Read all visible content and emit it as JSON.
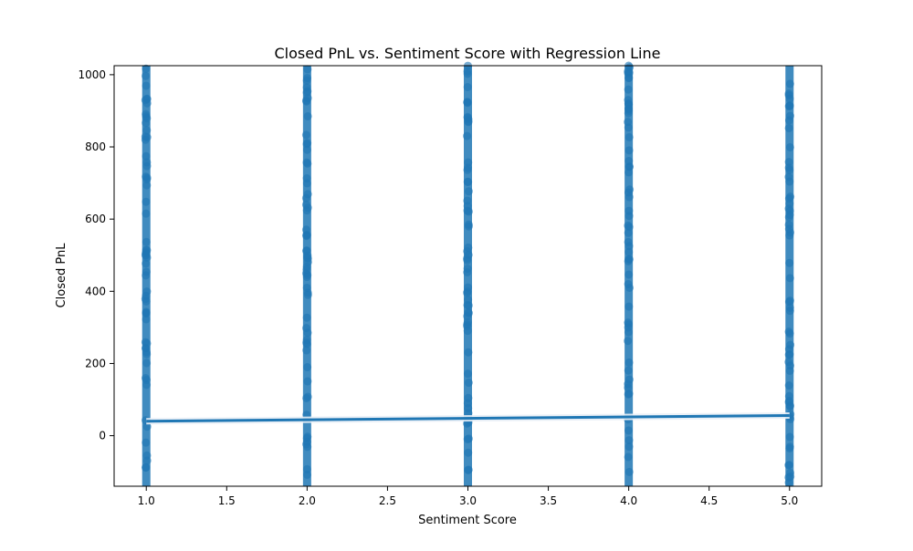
{
  "chart_data": {
    "type": "scatter",
    "title": "Closed PnL vs. Sentiment Score with Regression Line",
    "xlabel": "Sentiment Score",
    "ylabel": "Closed PnL",
    "xlim": [
      0.8,
      5.2
    ],
    "ylim": [
      -140,
      1025
    ],
    "xticks": [
      "1.0",
      "1.5",
      "2.0",
      "2.5",
      "3.0",
      "3.5",
      "4.0",
      "4.5",
      "5.0"
    ],
    "yticks": [
      "0",
      "200",
      "400",
      "600",
      "800",
      "1000"
    ],
    "grid": false,
    "color": "#1f77b4",
    "series": [
      {
        "values": [
          {
            "x": 1,
            "y_min": -140,
            "y_max": 1025
          },
          {
            "x": 2,
            "y_min": -140,
            "y_max": 1025
          },
          {
            "x": 3,
            "y_min": -140,
            "y_max": 1025
          },
          {
            "x": 4,
            "y_min": -140,
            "y_max": 1025
          },
          {
            "x": 5,
            "y_min": -140,
            "y_max": 1025
          }
        ]
      }
    ],
    "regression": {
      "points": [
        {
          "x": 1,
          "y": 40
        },
        {
          "x": 5,
          "y": 56
        }
      ]
    }
  }
}
